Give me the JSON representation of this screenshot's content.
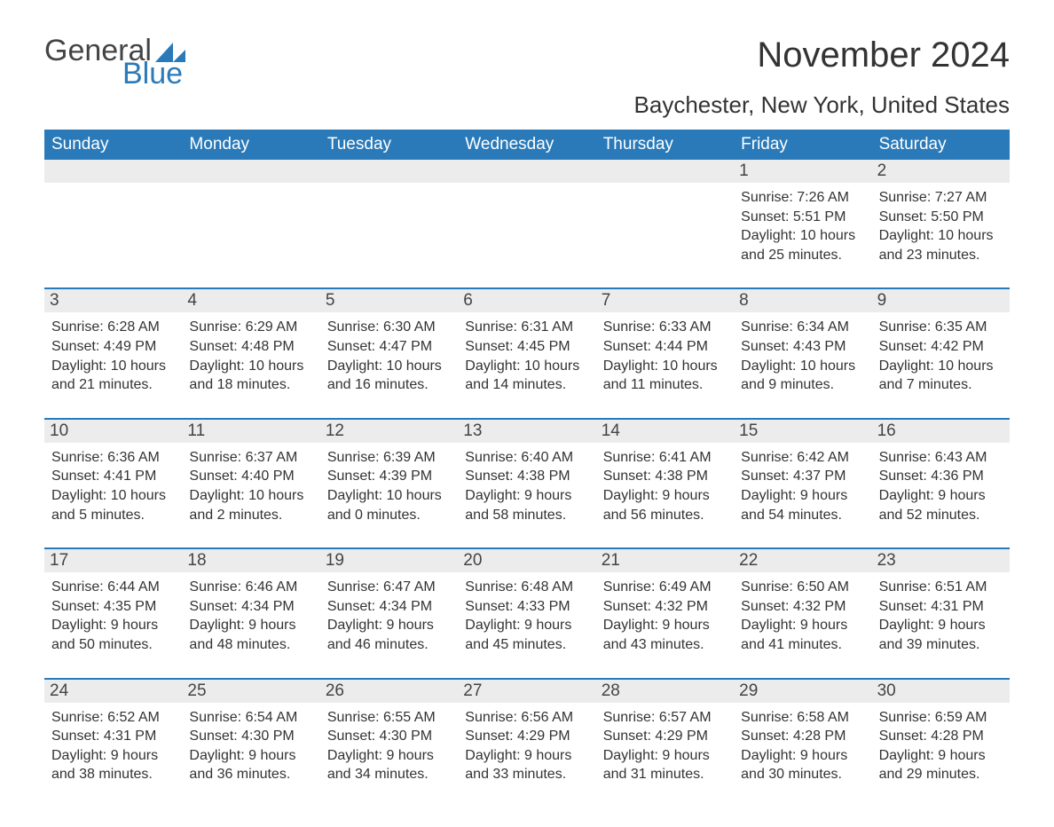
{
  "logo": {
    "word1": "General",
    "word2": "Blue"
  },
  "colors": {
    "brand_blue": "#2a7ab9",
    "header_bg": "#2a7ab9",
    "header_text": "#ffffff",
    "daynum_bg": "#ececec",
    "body_text": "#333333",
    "page_bg": "#ffffff",
    "row_separator": "#2a7ab9"
  },
  "typography": {
    "title_fontsize": 40,
    "location_fontsize": 26,
    "dayheader_fontsize": 19,
    "daynum_fontsize": 19,
    "body_fontsize": 16,
    "font_family": "Arial"
  },
  "title": "November 2024",
  "location": "Baychester, New York, United States",
  "day_headers": [
    "Sunday",
    "Monday",
    "Tuesday",
    "Wednesday",
    "Thursday",
    "Friday",
    "Saturday"
  ],
  "weeks": [
    [
      {
        "num": "",
        "sunrise": "",
        "sunset": "",
        "daylight": ""
      },
      {
        "num": "",
        "sunrise": "",
        "sunset": "",
        "daylight": ""
      },
      {
        "num": "",
        "sunrise": "",
        "sunset": "",
        "daylight": ""
      },
      {
        "num": "",
        "sunrise": "",
        "sunset": "",
        "daylight": ""
      },
      {
        "num": "",
        "sunrise": "",
        "sunset": "",
        "daylight": ""
      },
      {
        "num": "1",
        "sunrise": "Sunrise: 7:26 AM",
        "sunset": "Sunset: 5:51 PM",
        "daylight": "Daylight: 10 hours and 25 minutes."
      },
      {
        "num": "2",
        "sunrise": "Sunrise: 7:27 AM",
        "sunset": "Sunset: 5:50 PM",
        "daylight": "Daylight: 10 hours and 23 minutes."
      }
    ],
    [
      {
        "num": "3",
        "sunrise": "Sunrise: 6:28 AM",
        "sunset": "Sunset: 4:49 PM",
        "daylight": "Daylight: 10 hours and 21 minutes."
      },
      {
        "num": "4",
        "sunrise": "Sunrise: 6:29 AM",
        "sunset": "Sunset: 4:48 PM",
        "daylight": "Daylight: 10 hours and 18 minutes."
      },
      {
        "num": "5",
        "sunrise": "Sunrise: 6:30 AM",
        "sunset": "Sunset: 4:47 PM",
        "daylight": "Daylight: 10 hours and 16 minutes."
      },
      {
        "num": "6",
        "sunrise": "Sunrise: 6:31 AM",
        "sunset": "Sunset: 4:45 PM",
        "daylight": "Daylight: 10 hours and 14 minutes."
      },
      {
        "num": "7",
        "sunrise": "Sunrise: 6:33 AM",
        "sunset": "Sunset: 4:44 PM",
        "daylight": "Daylight: 10 hours and 11 minutes."
      },
      {
        "num": "8",
        "sunrise": "Sunrise: 6:34 AM",
        "sunset": "Sunset: 4:43 PM",
        "daylight": "Daylight: 10 hours and 9 minutes."
      },
      {
        "num": "9",
        "sunrise": "Sunrise: 6:35 AM",
        "sunset": "Sunset: 4:42 PM",
        "daylight": "Daylight: 10 hours and 7 minutes."
      }
    ],
    [
      {
        "num": "10",
        "sunrise": "Sunrise: 6:36 AM",
        "sunset": "Sunset: 4:41 PM",
        "daylight": "Daylight: 10 hours and 5 minutes."
      },
      {
        "num": "11",
        "sunrise": "Sunrise: 6:37 AM",
        "sunset": "Sunset: 4:40 PM",
        "daylight": "Daylight: 10 hours and 2 minutes."
      },
      {
        "num": "12",
        "sunrise": "Sunrise: 6:39 AM",
        "sunset": "Sunset: 4:39 PM",
        "daylight": "Daylight: 10 hours and 0 minutes."
      },
      {
        "num": "13",
        "sunrise": "Sunrise: 6:40 AM",
        "sunset": "Sunset: 4:38 PM",
        "daylight": "Daylight: 9 hours and 58 minutes."
      },
      {
        "num": "14",
        "sunrise": "Sunrise: 6:41 AM",
        "sunset": "Sunset: 4:38 PM",
        "daylight": "Daylight: 9 hours and 56 minutes."
      },
      {
        "num": "15",
        "sunrise": "Sunrise: 6:42 AM",
        "sunset": "Sunset: 4:37 PM",
        "daylight": "Daylight: 9 hours and 54 minutes."
      },
      {
        "num": "16",
        "sunrise": "Sunrise: 6:43 AM",
        "sunset": "Sunset: 4:36 PM",
        "daylight": "Daylight: 9 hours and 52 minutes."
      }
    ],
    [
      {
        "num": "17",
        "sunrise": "Sunrise: 6:44 AM",
        "sunset": "Sunset: 4:35 PM",
        "daylight": "Daylight: 9 hours and 50 minutes."
      },
      {
        "num": "18",
        "sunrise": "Sunrise: 6:46 AM",
        "sunset": "Sunset: 4:34 PM",
        "daylight": "Daylight: 9 hours and 48 minutes."
      },
      {
        "num": "19",
        "sunrise": "Sunrise: 6:47 AM",
        "sunset": "Sunset: 4:34 PM",
        "daylight": "Daylight: 9 hours and 46 minutes."
      },
      {
        "num": "20",
        "sunrise": "Sunrise: 6:48 AM",
        "sunset": "Sunset: 4:33 PM",
        "daylight": "Daylight: 9 hours and 45 minutes."
      },
      {
        "num": "21",
        "sunrise": "Sunrise: 6:49 AM",
        "sunset": "Sunset: 4:32 PM",
        "daylight": "Daylight: 9 hours and 43 minutes."
      },
      {
        "num": "22",
        "sunrise": "Sunrise: 6:50 AM",
        "sunset": "Sunset: 4:32 PM",
        "daylight": "Daylight: 9 hours and 41 minutes."
      },
      {
        "num": "23",
        "sunrise": "Sunrise: 6:51 AM",
        "sunset": "Sunset: 4:31 PM",
        "daylight": "Daylight: 9 hours and 39 minutes."
      }
    ],
    [
      {
        "num": "24",
        "sunrise": "Sunrise: 6:52 AM",
        "sunset": "Sunset: 4:31 PM",
        "daylight": "Daylight: 9 hours and 38 minutes."
      },
      {
        "num": "25",
        "sunrise": "Sunrise: 6:54 AM",
        "sunset": "Sunset: 4:30 PM",
        "daylight": "Daylight: 9 hours and 36 minutes."
      },
      {
        "num": "26",
        "sunrise": "Sunrise: 6:55 AM",
        "sunset": "Sunset: 4:30 PM",
        "daylight": "Daylight: 9 hours and 34 minutes."
      },
      {
        "num": "27",
        "sunrise": "Sunrise: 6:56 AM",
        "sunset": "Sunset: 4:29 PM",
        "daylight": "Daylight: 9 hours and 33 minutes."
      },
      {
        "num": "28",
        "sunrise": "Sunrise: 6:57 AM",
        "sunset": "Sunset: 4:29 PM",
        "daylight": "Daylight: 9 hours and 31 minutes."
      },
      {
        "num": "29",
        "sunrise": "Sunrise: 6:58 AM",
        "sunset": "Sunset: 4:28 PM",
        "daylight": "Daylight: 9 hours and 30 minutes."
      },
      {
        "num": "30",
        "sunrise": "Sunrise: 6:59 AM",
        "sunset": "Sunset: 4:28 PM",
        "daylight": "Daylight: 9 hours and 29 minutes."
      }
    ]
  ]
}
